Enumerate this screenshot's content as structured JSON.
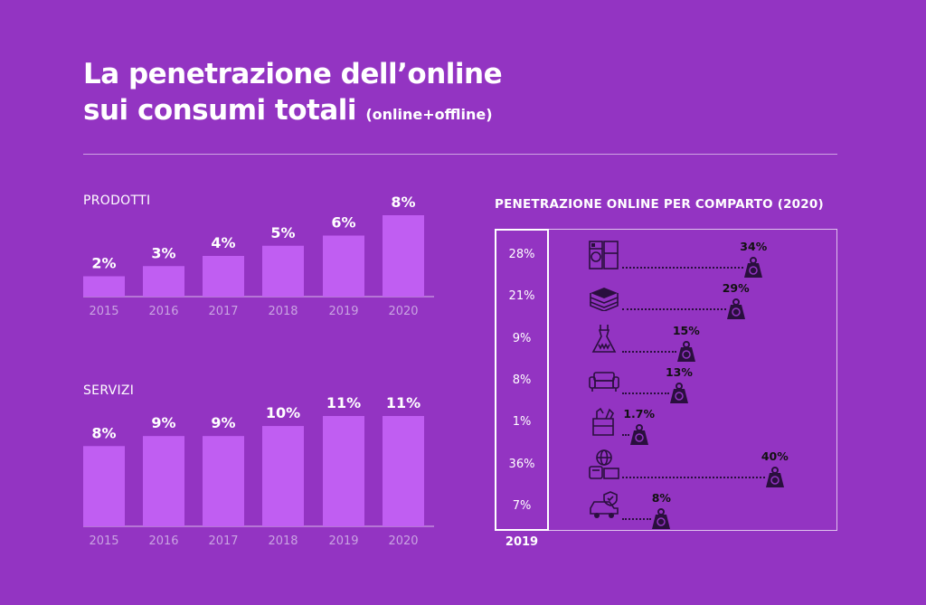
{
  "title": {
    "line1": "La penetrazione dell’online",
    "line2": "sui consumi totali",
    "suffix": "(online+offline)"
  },
  "colors": {
    "background": "#9334c2",
    "bar": "#c05ef2",
    "axis_label": "#c9a3e2",
    "icon": "#2a0f3e",
    "text": "#ffffff"
  },
  "chart_data": [
    {
      "type": "bar",
      "title": "PRODOTTI",
      "categories": [
        "2015",
        "2016",
        "2017",
        "2018",
        "2019",
        "2020"
      ],
      "values": [
        2,
        3,
        4,
        5,
        6,
        8
      ],
      "data_labels": [
        "2%",
        "3%",
        "4%",
        "5%",
        "6%",
        "8%"
      ],
      "unit": "%",
      "ylim": [
        0,
        8
      ],
      "grid": false
    },
    {
      "type": "bar",
      "title": "SERVIZI",
      "categories": [
        "2015",
        "2016",
        "2017",
        "2018",
        "2019",
        "2020"
      ],
      "values": [
        8,
        9,
        9,
        10,
        11,
        11
      ],
      "data_labels": [
        "8%",
        "9%",
        "9%",
        "10%",
        "11%",
        "11%"
      ],
      "unit": "%",
      "ylim": [
        0,
        11
      ],
      "grid": false
    },
    {
      "type": "scatter",
      "title": "PENETRAZIONE ONLINE PER COMPARTO (2020)",
      "column_label_2019": "2019",
      "categories": [
        {
          "icon": "appliances-icon",
          "value_2019": 28,
          "label_2019": "28%",
          "value_2020": 34,
          "label_2020": "34%"
        },
        {
          "icon": "books-icon",
          "value_2019": 21,
          "label_2019": "21%",
          "value_2020": 29,
          "label_2020": "29%"
        },
        {
          "icon": "dress-icon",
          "value_2019": 9,
          "label_2019": "9%",
          "value_2020": 15,
          "label_2020": "15%"
        },
        {
          "icon": "sofa-icon",
          "value_2019": 8,
          "label_2019": "8%",
          "value_2020": 13,
          "label_2020": "13%"
        },
        {
          "icon": "grocery-bag-icon",
          "value_2019": 1,
          "label_2019": "1%",
          "value_2020": 1.7,
          "label_2020": "1.7%"
        },
        {
          "icon": "travel-globe-icon",
          "value_2019": 36,
          "label_2019": "36%",
          "value_2020": 40,
          "label_2020": "40%"
        },
        {
          "icon": "car-insurance-icon",
          "value_2019": 7,
          "label_2019": "7%",
          "value_2020": 8,
          "label_2020": "8%"
        }
      ],
      "grid": false
    }
  ]
}
